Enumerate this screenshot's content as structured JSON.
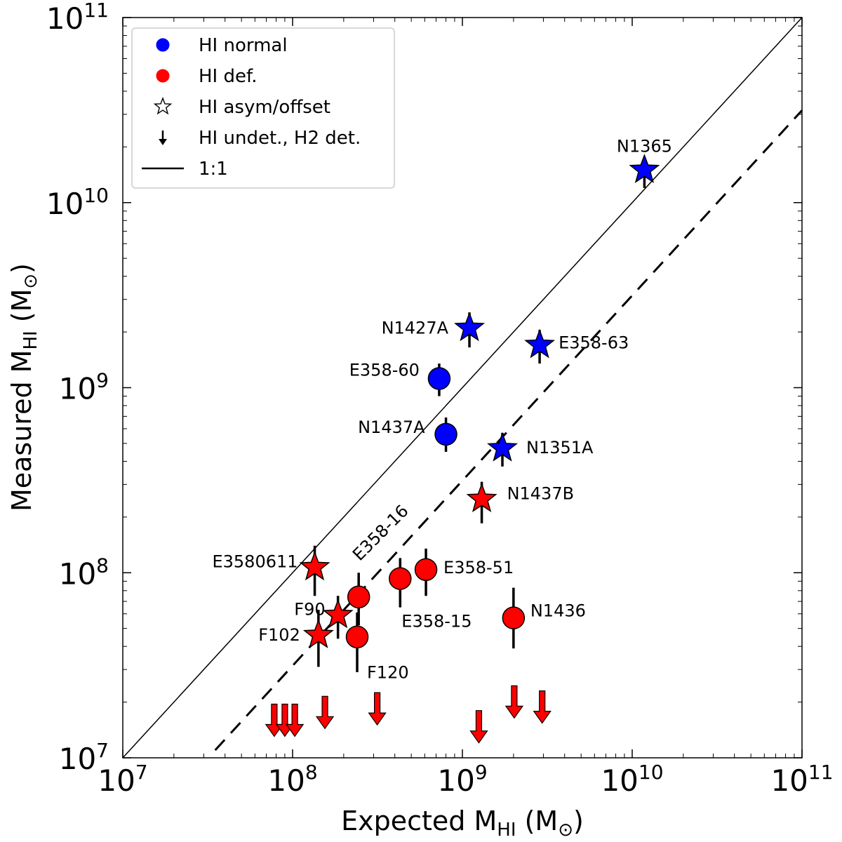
{
  "chart_data": {
    "type": "scatter",
    "xscale": "log",
    "yscale": "log",
    "xlim": [
      10000000.0,
      100000000000.0
    ],
    "ylim": [
      10000000.0,
      100000000000.0
    ],
    "xlabel": {
      "base": "Expected M",
      "sub": "HI",
      "unit": "(M",
      "sun": "⊙",
      "close": ")"
    },
    "ylabel": {
      "base": "Measured M",
      "sub": "HI",
      "unit": "(M",
      "sun": "⊙",
      "close": ")"
    },
    "ticks": [
      {
        "value": 10000000.0,
        "mant": "10",
        "exp": "7"
      },
      {
        "value": 100000000.0,
        "mant": "10",
        "exp": "8"
      },
      {
        "value": 1000000000.0,
        "mant": "10",
        "exp": "9"
      },
      {
        "value": 10000000000.0,
        "mant": "10",
        "exp": "10"
      },
      {
        "value": 100000000000.0,
        "mant": "10",
        "exp": "11"
      }
    ],
    "colors": {
      "normal": "#0000ff",
      "deficient": "#ff0000"
    },
    "legend": {
      "placement": "top-left",
      "entries": [
        {
          "label": "HI normal",
          "marker": "circle",
          "color": "#0000ff"
        },
        {
          "label": "HI def.",
          "marker": "circle",
          "color": "#ff0000"
        },
        {
          "label": "HI asym/offset",
          "marker": "star-open",
          "color": "#ffffff"
        },
        {
          "label": "HI undet., H2 det.",
          "marker": "arrow",
          "color": "#000000"
        },
        {
          "label": "1:1",
          "marker": "line",
          "color": "#000000"
        }
      ]
    },
    "lines": [
      {
        "name": "1:1",
        "style": "solid",
        "x": [
          10000000.0,
          100000000000.0
        ],
        "y": [
          10000000.0,
          100000000000.0
        ]
      },
      {
        "name": "deficiency threshold",
        "style": "dashed",
        "x": [
          35000000.0,
          100000000000.0
        ],
        "y": [
          11000000.0,
          31500000000.0
        ]
      }
    ],
    "points": [
      {
        "name": "N1365",
        "x": 11800000000.0,
        "y": 15000000000.0,
        "ylo": 12000000000.0,
        "yhi": 15000000000.0,
        "marker": "star",
        "group": "normal",
        "label_dx": 0,
        "label_dy": -34,
        "anchor": "middle"
      },
      {
        "name": "N1427A",
        "x": 1100000000.0,
        "y": 2100000000.0,
        "ylo": 1650000000.0,
        "yhi": 2550000000.0,
        "marker": "star",
        "group": "normal",
        "label_dx": -30,
        "label_dy": 0,
        "anchor": "end"
      },
      {
        "name": "E358-63",
        "x": 2850000000.0,
        "y": 1700000000.0,
        "ylo": 1350000000.0,
        "yhi": 2050000000.0,
        "marker": "star",
        "group": "normal",
        "label_dx": 27,
        "label_dy": -3,
        "anchor": "start"
      },
      {
        "name": "E358-60",
        "x": 730000000.0,
        "y": 1120000000.0,
        "ylo": 900000000.0,
        "yhi": 1350000000.0,
        "marker": "circle",
        "group": "normal",
        "label_dx": -28,
        "label_dy": -12,
        "anchor": "end"
      },
      {
        "name": "N1437A",
        "x": 800000000.0,
        "y": 560000000.0,
        "ylo": 450000000.0,
        "yhi": 690000000.0,
        "marker": "circle",
        "group": "normal",
        "label_dx": -30,
        "label_dy": -10,
        "anchor": "end"
      },
      {
        "name": "N1351A",
        "x": 1720000000.0,
        "y": 470000000.0,
        "ylo": 375000000.0,
        "yhi": 570000000.0,
        "marker": "star",
        "group": "normal",
        "label_dx": 34,
        "label_dy": -1,
        "anchor": "start"
      },
      {
        "name": "N1437B",
        "x": 1300000000.0,
        "y": 250000000.0,
        "ylo": 185000000.0,
        "yhi": 310000000.0,
        "marker": "star",
        "group": "deficient",
        "label_dx": 36,
        "label_dy": -8,
        "anchor": "start"
      },
      {
        "name": "E3580611",
        "x": 135000000.0,
        "y": 107000000.0,
        "ylo": 75000000.0,
        "yhi": 140000000.0,
        "marker": "star",
        "group": "deficient",
        "label_dx": -24,
        "label_dy": -8,
        "anchor": "end"
      },
      {
        "name": "E358-16",
        "x": 245000000.0,
        "y": 74000000.0,
        "ylo": 52000000.0,
        "yhi": 100000000.0,
        "marker": "circle",
        "group": "deficient",
        "label_dx": 0,
        "label_dy": 0,
        "anchor": "middle",
        "label_abs": [
          548,
          765
        ],
        "label_rotate": -45
      },
      {
        "name": "E358-15",
        "x": 430000000.0,
        "y": 93000000.0,
        "ylo": 65000000.0,
        "yhi": 120000000.0,
        "marker": "circle",
        "group": "deficient",
        "label_dx": 2,
        "label_dy": 61,
        "anchor": "start"
      },
      {
        "name": "E358-51",
        "x": 610000000.0,
        "y": 104000000.0,
        "ylo": 75000000.0,
        "yhi": 135000000.0,
        "marker": "circle",
        "group": "deficient",
        "label_dx": 25,
        "label_dy": -3,
        "anchor": "start"
      },
      {
        "name": "F90",
        "x": 185000000.0,
        "y": 59000000.0,
        "ylo": 44000000.0,
        "yhi": 75000000.0,
        "marker": "star",
        "group": "deficient",
        "label_dx": -18,
        "label_dy": -8,
        "anchor": "end"
      },
      {
        "name": "F102",
        "x": 142000000.0,
        "y": 46000000.0,
        "ylo": 31000000.0,
        "yhi": 63000000.0,
        "marker": "star",
        "group": "deficient",
        "label_dx": -26,
        "label_dy": 0,
        "anchor": "end"
      },
      {
        "name": "F120",
        "x": 240000000.0,
        "y": 45000000.0,
        "ylo": 29000000.0,
        "yhi": 61000000.0,
        "marker": "circle",
        "group": "deficient",
        "label_dx": 14,
        "label_dy": 51,
        "anchor": "start"
      },
      {
        "name": "N1436",
        "x": 2000000000.0,
        "y": 57000000.0,
        "ylo": 39000000.0,
        "yhi": 83000000.0,
        "marker": "circle",
        "group": "deficient",
        "label_dx": 24,
        "label_dy": -10,
        "anchor": "start"
      }
    ],
    "upper_limits": [
      {
        "x": 78000000.0,
        "y": 19500000.0
      },
      {
        "x": 90000000.0,
        "y": 19500000.0
      },
      {
        "x": 103000000.0,
        "y": 19500000.0
      },
      {
        "x": 155000000.0,
        "y": 21500000.0
      },
      {
        "x": 315000000.0,
        "y": 22500000.0
      },
      {
        "x": 1250000000.0,
        "y": 18000000.0
      },
      {
        "x": 2020000000.0,
        "y": 24500000.0
      },
      {
        "x": 2950000000.0,
        "y": 23000000.0
      }
    ]
  }
}
